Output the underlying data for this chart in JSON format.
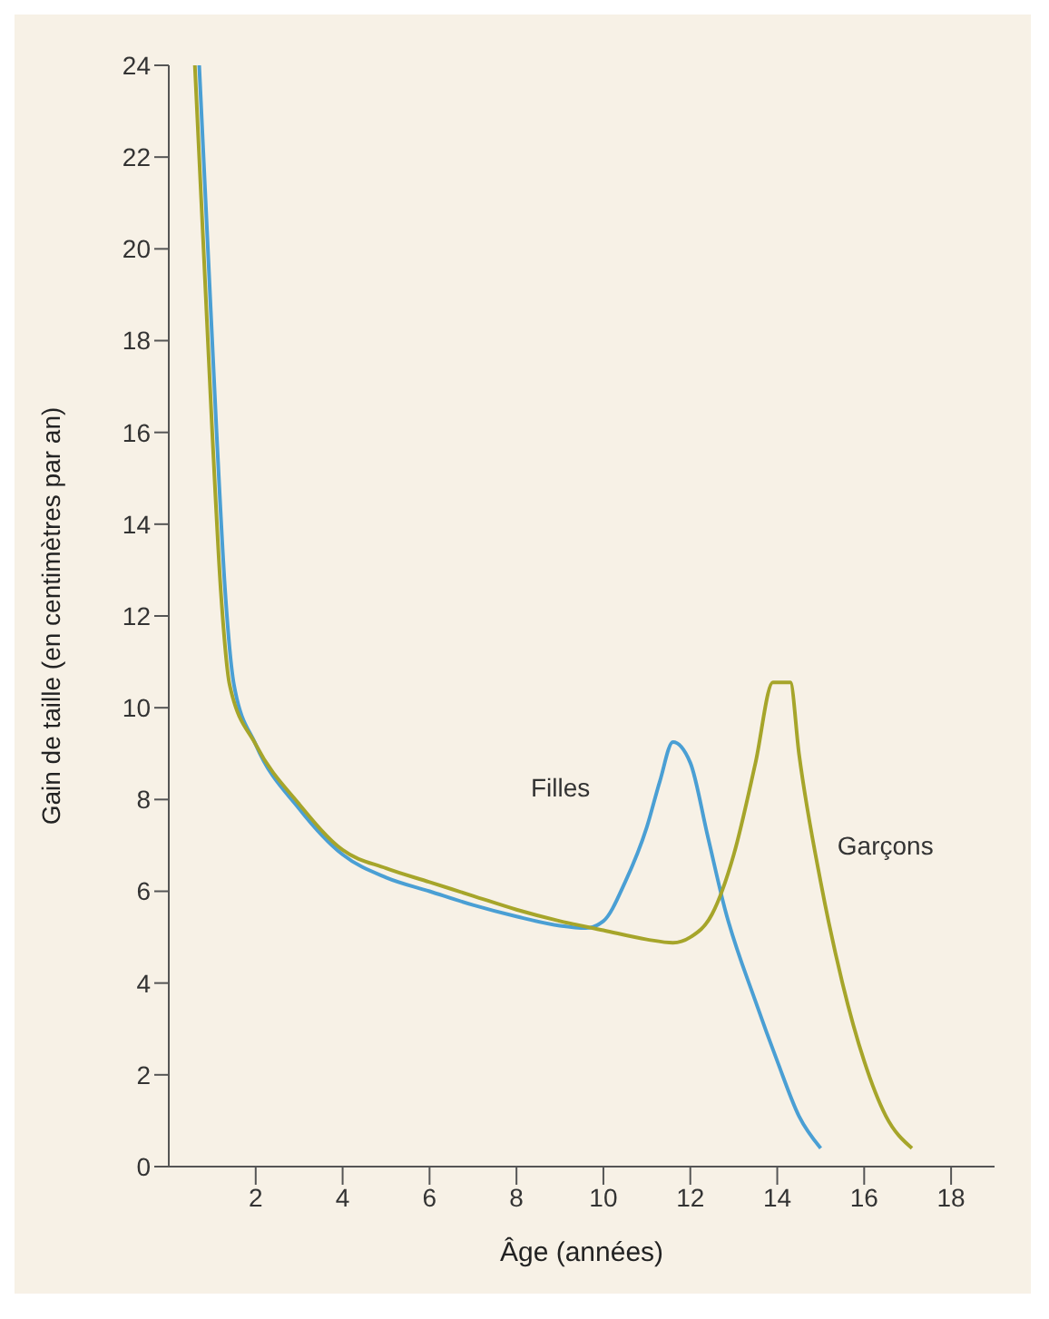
{
  "chart_data": {
    "type": "line",
    "xlabel": "Âge (années)",
    "ylabel": "Gain de taille (en centimètres par an)",
    "xlim": [
      0,
      19
    ],
    "xticks": [
      2,
      4,
      6,
      8,
      10,
      12,
      14,
      16,
      18
    ],
    "ylim": [
      0,
      24
    ],
    "yticks": [
      0,
      2,
      4,
      6,
      8,
      10,
      12,
      14,
      16,
      18,
      20,
      22,
      24
    ],
    "grid": false,
    "legend": false,
    "marker": "none",
    "line_style": "solid",
    "series": [
      {
        "name": "Filles",
        "color": "#4a9fd4",
        "x": [
          0.7,
          0.9,
          1.1,
          1.3,
          1.5,
          2,
          3,
          4,
          5,
          6,
          7,
          8,
          9,
          9.6,
          10,
          10.5,
          11,
          11.3,
          11.6,
          12,
          12.4,
          12.8,
          13.5,
          14,
          14.5,
          15
        ],
        "values": [
          24,
          20,
          16,
          12.5,
          10.5,
          9.2,
          7.8,
          6.8,
          6.3,
          6.0,
          5.7,
          5.45,
          5.25,
          5.2,
          5.35,
          6.2,
          7.4,
          8.4,
          9.25,
          8.8,
          7.2,
          5.6,
          3.6,
          2.3,
          1.1,
          0.4
        ]
      },
      {
        "name": "Garçons",
        "color": "#a6a52a",
        "x": [
          0.6,
          0.8,
          1.0,
          1.2,
          1.4,
          2,
          3,
          4,
          5,
          6,
          7,
          8,
          9,
          10,
          11,
          11.6,
          12,
          12.5,
          13,
          13.5,
          13.9,
          14.3,
          14.5,
          15,
          15.5,
          16,
          16.5,
          17.1
        ],
        "values": [
          24,
          20,
          16,
          12.5,
          10.5,
          9.2,
          7.9,
          6.9,
          6.5,
          6.2,
          5.9,
          5.6,
          5.35,
          5.15,
          4.95,
          4.88,
          5.0,
          5.5,
          6.8,
          8.8,
          10.55,
          10.55,
          9.0,
          6.2,
          4.0,
          2.3,
          1.1,
          0.4
        ]
      }
    ]
  }
}
